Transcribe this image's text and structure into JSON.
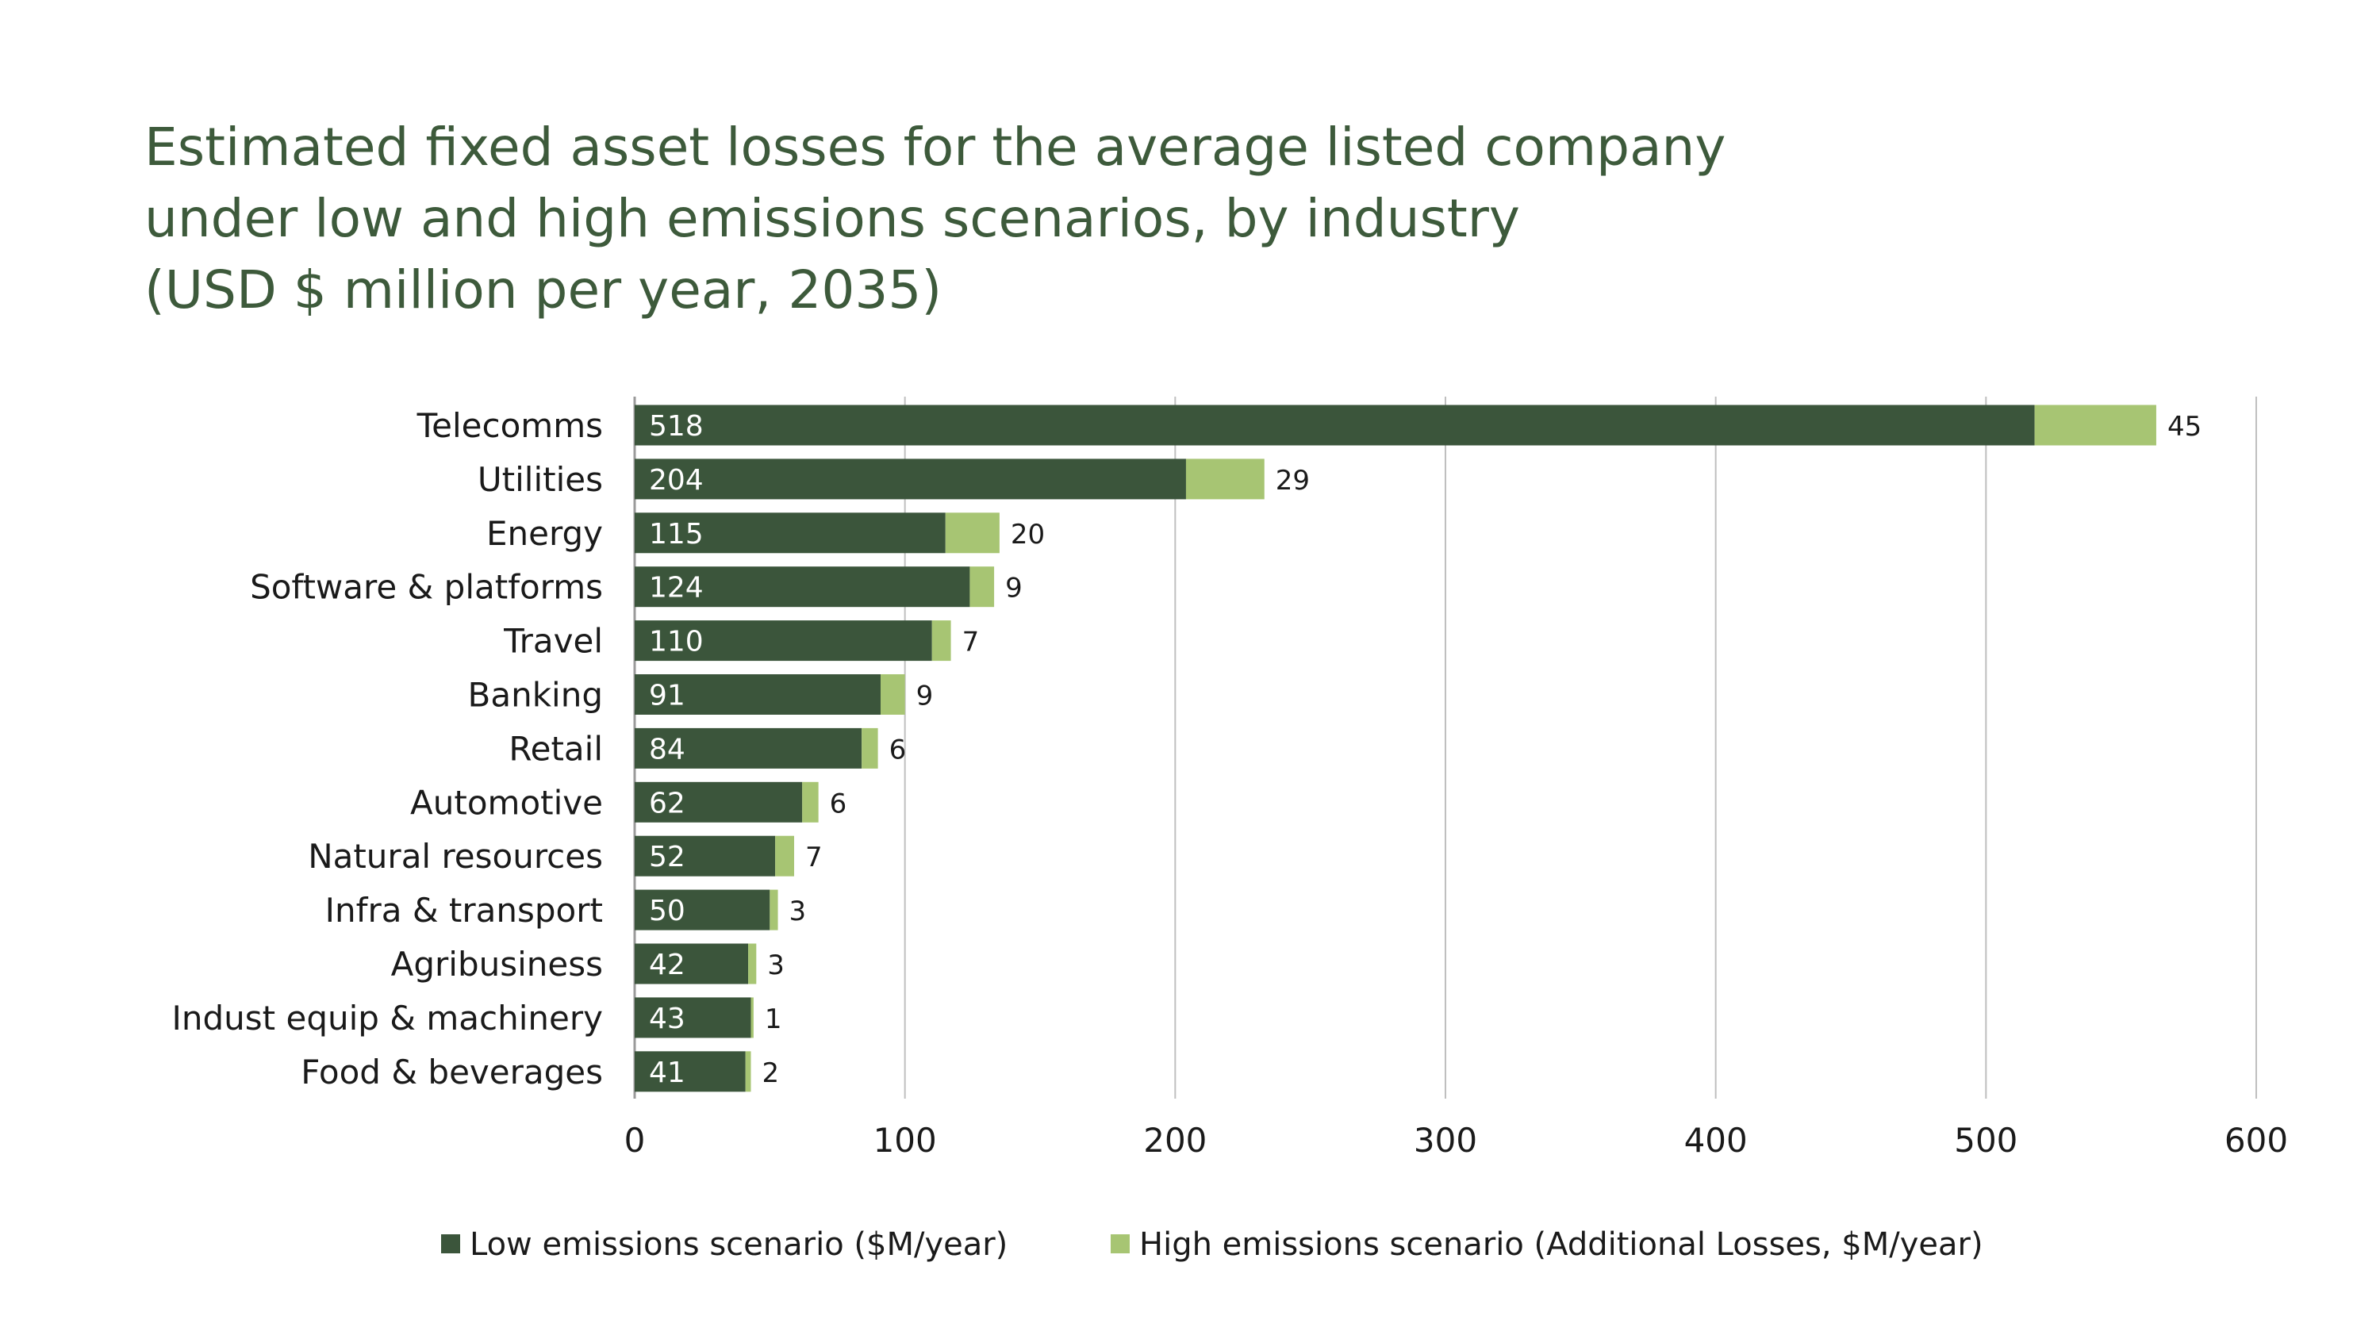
{
  "chart_data": {
    "type": "bar",
    "orientation": "horizontal",
    "stacked": true,
    "title_lines": [
      "Estimated fixed asset losses for the average listed company",
      "under low and high emissions scenarios, by industry",
      "(USD $ million per year, 2035)"
    ],
    "categories": [
      "Telecomms",
      "Utilities",
      "Energy",
      "Software & platforms",
      "Travel",
      "Banking",
      "Retail",
      "Automotive",
      "Natural resources",
      "Infra & transport",
      "Agribusiness",
      "Indust equip & machinery",
      "Food & beverages"
    ],
    "series": [
      {
        "name": "Low emissions scenario ($M/year)",
        "color": "#3b553b",
        "values": [
          518,
          204,
          115,
          124,
          110,
          91,
          84,
          62,
          52,
          50,
          42,
          43,
          41
        ]
      },
      {
        "name": "High emissions scenario (Additional Losses, $M/year)",
        "color": "#a7c573",
        "values": [
          45,
          29,
          20,
          9,
          7,
          9,
          6,
          6,
          7,
          3,
          3,
          1,
          2
        ]
      }
    ],
    "xlim": [
      0,
      600
    ],
    "xticks": [
      0,
      100,
      200,
      300,
      400,
      500,
      600
    ],
    "grid": "vertical",
    "legend_position": "bottom",
    "colors": {
      "title": "#3d5a3b",
      "text": "#1a1a1a",
      "grid": "#bfbfbf",
      "axis": "#9a9a9a"
    }
  }
}
